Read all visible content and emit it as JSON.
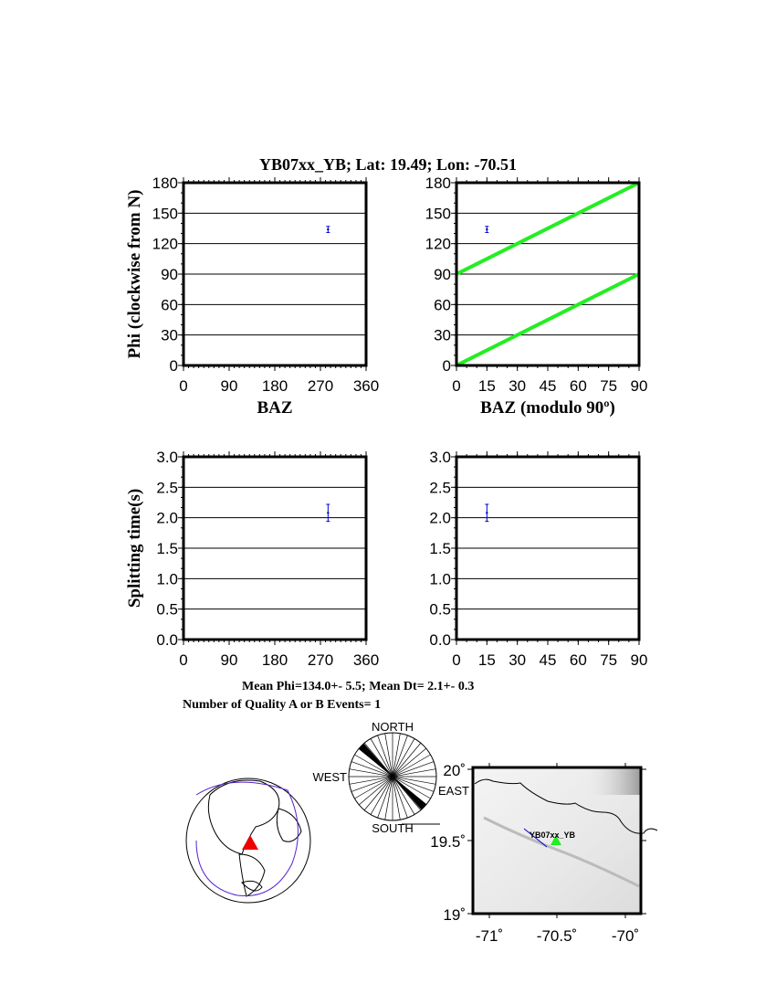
{
  "title": "YB07xx_YB; Lat:  19.49;  Lon:  -70.51",
  "summary": {
    "line1": "Mean Phi=134.0+-  5.5; Mean Dt=  2.1+-  0.3",
    "line2": "Number of Quality A or B Events=  1"
  },
  "colors": {
    "data": "#0000cc",
    "reference_lines": "#22ee22",
    "station_globe": "#ee0000",
    "station_map": "#22ee22",
    "plate_boundaries": "#5522cc"
  },
  "chart_data": [
    {
      "type": "scatter",
      "xlabel": "BAZ",
      "ylabel": "Phi (clockwise from N)",
      "xlim": [
        0,
        360
      ],
      "ylim": [
        0,
        180
      ],
      "xticks": [
        "0",
        "90",
        "180",
        "270",
        "360"
      ],
      "yticks": [
        "0",
        "30",
        "60",
        "90",
        "120",
        "150",
        "180"
      ],
      "grid": "horizontal",
      "points": [
        {
          "x": 285,
          "y": 134,
          "err": 3
        }
      ]
    },
    {
      "type": "scatter",
      "xlabel": "BAZ (modulo 90º)",
      "ylabel": "",
      "xlim": [
        0,
        90
      ],
      "ylim": [
        0,
        180
      ],
      "xticks": [
        "0",
        "15",
        "30",
        "45",
        "60",
        "75",
        "90"
      ],
      "yticks": [
        "0",
        "30",
        "60",
        "90",
        "120",
        "150",
        "180"
      ],
      "grid": "horizontal",
      "points": [
        {
          "x": 15,
          "y": 134,
          "err": 3
        }
      ],
      "lines": [
        {
          "x": [
            0,
            90
          ],
          "y": [
            0,
            90
          ]
        },
        {
          "x": [
            0,
            90
          ],
          "y": [
            90,
            180
          ]
        }
      ]
    },
    {
      "type": "scatter",
      "xlabel": "",
      "ylabel": "Splitting time(s)",
      "xlim": [
        0,
        360
      ],
      "ylim": [
        0,
        3
      ],
      "xticks": [
        "0",
        "90",
        "180",
        "270",
        "360"
      ],
      "yticks": [
        "0.0",
        "0.5",
        "1.0",
        "1.5",
        "2.0",
        "2.5",
        "3.0"
      ],
      "grid": "horizontal",
      "points": [
        {
          "x": 285,
          "y": 2.08,
          "err": 0.14
        }
      ]
    },
    {
      "type": "scatter",
      "xlabel": "",
      "ylabel": "",
      "xlim": [
        0,
        90
      ],
      "ylim": [
        0,
        3
      ],
      "xticks": [
        "0",
        "15",
        "30",
        "45",
        "60",
        "75",
        "90"
      ],
      "yticks": [
        "0.0",
        "0.5",
        "1.0",
        "1.5",
        "2.0",
        "2.5",
        "3.0"
      ],
      "grid": "horizontal",
      "points": [
        {
          "x": 15,
          "y": 2.08,
          "err": 0.14
        }
      ]
    }
  ],
  "rose": {
    "north": "NORTH",
    "south": "SOUTH",
    "west": "WEST",
    "east": "EAST",
    "peak_azimuth": 134
  },
  "map": {
    "station_label": "YB07xx_YB",
    "xticks": [
      "-71˚",
      "-70.5˚",
      "-70˚"
    ],
    "yticks": [
      "20˚",
      "19.5˚",
      "19˚"
    ],
    "station_lon": -70.51,
    "station_lat": 19.49
  }
}
